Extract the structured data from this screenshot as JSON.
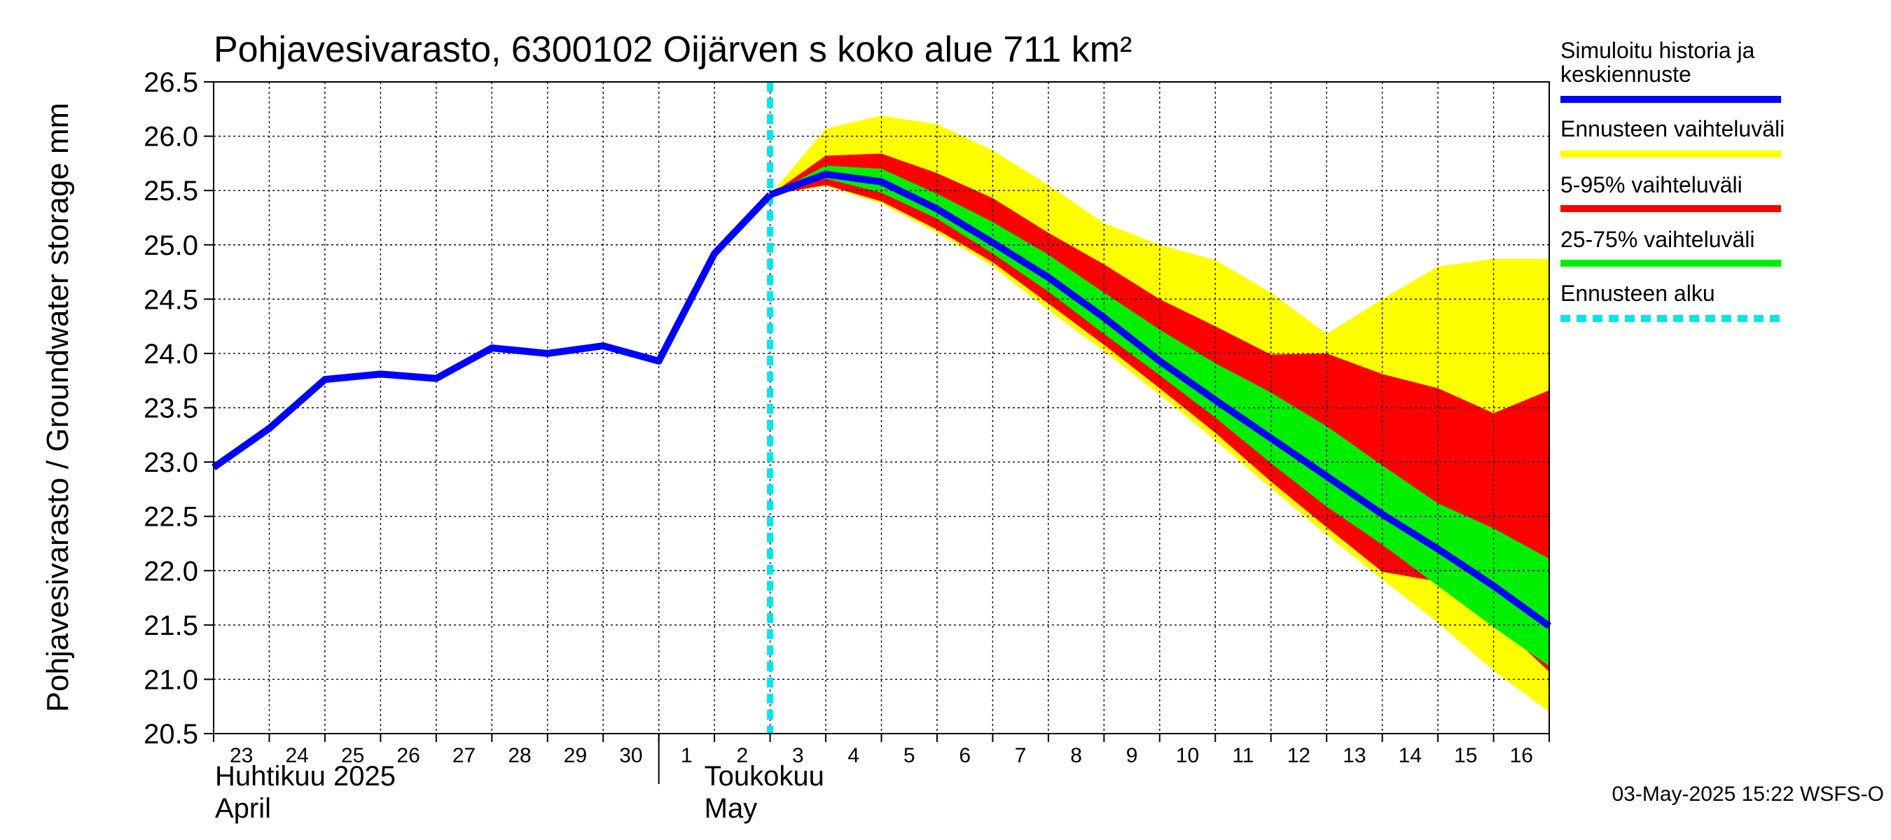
{
  "chart_data": {
    "type": "area",
    "title": "Pohjavesivarasto, 6300102 Oijärven s koko alue 711 km²",
    "ylabel": "Pohjavesivarasto / Groundwater storage   mm",
    "ylim": [
      20.5,
      26.5
    ],
    "yticks": [
      20.5,
      21.0,
      21.5,
      22.0,
      22.5,
      23.0,
      23.5,
      24.0,
      24.5,
      25.0,
      25.5,
      26.0,
      26.5
    ],
    "ytick_labels": [
      "20.5",
      "21.0",
      "21.5",
      "22.0",
      "22.5",
      "23.0",
      "23.5",
      "24.0",
      "24.5",
      "25.0",
      "25.5",
      "26.0",
      "26.5"
    ],
    "x_day_labels": [
      "23",
      "24",
      "25",
      "26",
      "27",
      "28",
      "29",
      "30",
      "1",
      "2",
      "3",
      "4",
      "5",
      "6",
      "7",
      "8",
      "9",
      "10",
      "11",
      "12",
      "13",
      "14",
      "15",
      "16"
    ],
    "month_labels": [
      {
        "line1": "Huhtikuu  2025",
        "line2": "April",
        "start_index": 0
      },
      {
        "line1": "Toukokuu",
        "line2": "May",
        "start_index": 8
      }
    ],
    "month_boundary_index": 8,
    "forecast_start_index": 10,
    "grid": true,
    "legend_position": "right",
    "history": {
      "x": [
        0,
        1,
        2,
        3,
        4,
        5,
        6,
        7,
        8,
        9,
        10
      ],
      "y": [
        22.95,
        23.31,
        23.76,
        23.81,
        23.77,
        24.05,
        24.0,
        24.07,
        23.93,
        24.92,
        25.46
      ]
    },
    "forecast_x": [
      10,
      11,
      12,
      13,
      14,
      15,
      16,
      17,
      18,
      19,
      20,
      21,
      22,
      23,
      24
    ],
    "forecast_median": [
      25.46,
      25.65,
      25.58,
      25.33,
      25.02,
      24.7,
      24.33,
      23.93,
      23.57,
      23.22,
      22.87,
      22.52,
      22.2,
      21.86,
      21.49
    ],
    "band_min_max": {
      "upper": [
        25.46,
        26.07,
        26.19,
        26.11,
        25.87,
        25.55,
        25.2,
        25.0,
        24.86,
        24.56,
        24.18,
        24.5,
        24.8,
        24.87,
        24.87
      ],
      "lower": [
        25.46,
        25.54,
        25.38,
        25.11,
        24.8,
        24.4,
        24.02,
        23.62,
        23.2,
        22.76,
        22.33,
        21.92,
        21.52,
        21.08,
        20.7
      ]
    },
    "band_5_95": {
      "upper": [
        25.46,
        25.82,
        25.84,
        25.66,
        25.43,
        25.11,
        24.82,
        24.5,
        24.25,
        23.99,
        24.0,
        23.81,
        23.68,
        23.45,
        23.66
      ],
      "lower": [
        25.46,
        25.55,
        25.4,
        25.14,
        24.84,
        24.46,
        24.08,
        23.68,
        23.27,
        22.82,
        22.4,
        21.99,
        21.9,
        21.55,
        21.07
      ]
    },
    "band_25_75": {
      "upper": [
        25.46,
        25.73,
        25.7,
        25.47,
        25.21,
        24.91,
        24.56,
        24.22,
        23.91,
        23.64,
        23.33,
        22.97,
        22.62,
        22.39,
        22.11
      ],
      "lower": [
        25.46,
        25.61,
        25.48,
        25.24,
        24.92,
        24.57,
        24.18,
        23.8,
        23.41,
        22.99,
        22.59,
        22.24,
        21.86,
        21.48,
        21.12
      ]
    },
    "legend": [
      {
        "label": "Simuloitu historia ja",
        "label2": "keskiennuste",
        "color": "#0000ff",
        "style": "solid"
      },
      {
        "label": "Ennusteen vaihteluväli",
        "color": "#ffff00",
        "style": "solid"
      },
      {
        "label": "5-95% vaihteluväli",
        "color": "#ff0000",
        "style": "solid"
      },
      {
        "label": "25-75% vaihteluväli",
        "color": "#00ee00",
        "style": "solid"
      },
      {
        "label": "Ennusteen alku",
        "color": "#00e5ee",
        "style": "dashed"
      }
    ],
    "colors": {
      "history": "#0000ff",
      "minmax": "#ffff00",
      "p5_95": "#ff0000",
      "p25_75": "#00ee00",
      "forecast_start": "#00e5ee",
      "grid": "#000000"
    }
  },
  "footer": {
    "timestamp": "03-May-2025 15:22 WSFS-O"
  }
}
